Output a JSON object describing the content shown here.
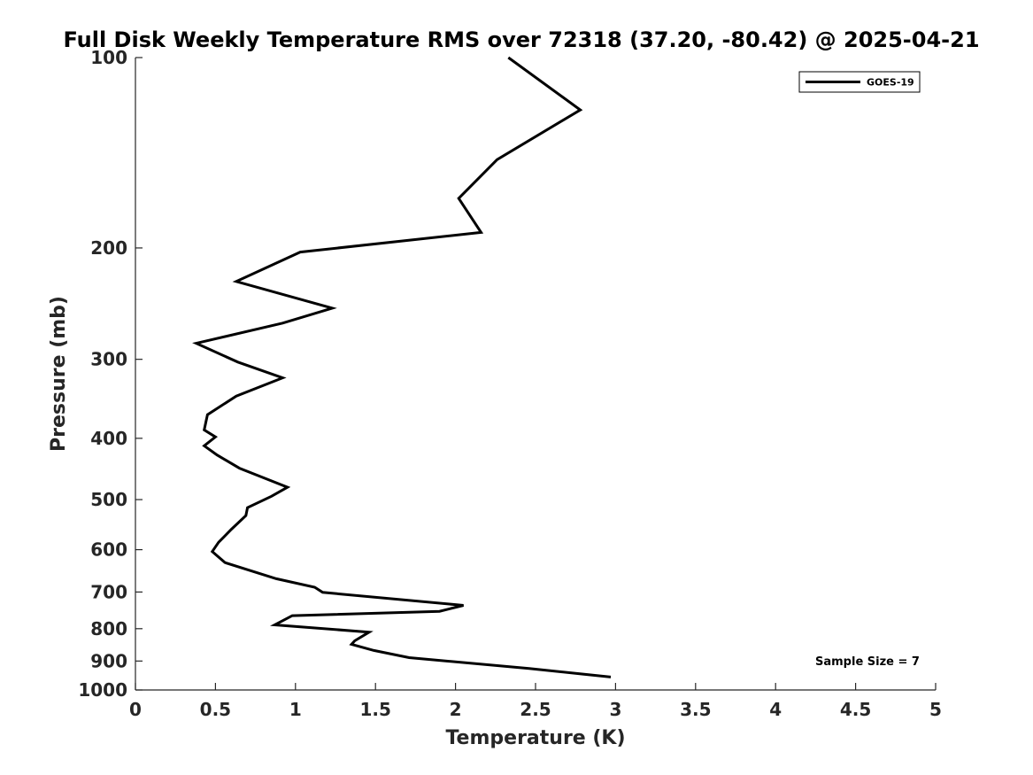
{
  "chart_data": {
    "type": "line",
    "title": "Full Disk Weekly Temperature RMS over 72318 (37.20, -80.42) @ 2025-04-21",
    "xlabel": "Temperature (K)",
    "ylabel": "Pressure (mb)",
    "xlim": [
      0,
      5
    ],
    "ylim": [
      100,
      1000
    ],
    "y_scale": "log",
    "y_reversed": true,
    "x_ticks": [
      "0",
      "0.5",
      "1",
      "1.5",
      "2",
      "2.5",
      "3",
      "3.5",
      "4",
      "4.5",
      "5"
    ],
    "y_ticks": [
      "100",
      "200",
      "300",
      "400",
      "500",
      "600",
      "700",
      "800",
      "900",
      "1000"
    ],
    "grid": false,
    "legend_position": "top-right",
    "series": [
      {
        "name": "GOES-19",
        "color": "#000000",
        "x": [
          2.33,
          2.78,
          2.26,
          2.02,
          2.16,
          1.03,
          0.63,
          1.23,
          0.92,
          0.38,
          0.64,
          0.92,
          0.63,
          0.45,
          0.44,
          0.43,
          0.5,
          0.43,
          0.51,
          0.65,
          0.95,
          0.85,
          0.7,
          0.69,
          0.6,
          0.52,
          0.48,
          0.56,
          0.88,
          1.12,
          1.17,
          2.05,
          1.9,
          0.98,
          0.87,
          1.46,
          1.37,
          1.35,
          1.49,
          1.71,
          2.46,
          2.97
        ],
        "y": [
          100,
          121,
          145,
          167,
          189,
          203,
          226,
          249,
          263,
          283,
          303,
          321,
          343,
          367,
          377,
          388,
          398,
          411,
          425,
          446,
          478,
          494,
          515,
          530,
          557,
          584,
          604,
          629,
          667,
          688,
          701,
          735,
          751,
          763,
          789,
          810,
          836,
          847,
          866,
          889,
          925,
          954
        ]
      }
    ],
    "annotations": [
      "Sample Size = 7"
    ]
  }
}
